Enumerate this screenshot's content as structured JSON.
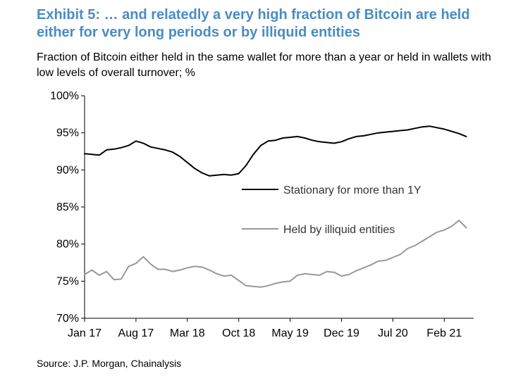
{
  "title": "Exhibit 5: … and relatedly a very high fraction of Bitcoin are held either for very long periods or by illiquid entities",
  "subtitle": "Fraction of Bitcoin either held in the same wallet for more than a year or held in wallets with low levels of overall turnover; %",
  "source": "Source: J.P. Morgan, Chainalysis",
  "chart_data": {
    "type": "line",
    "title": "Exhibit 5: … and relatedly a very high fraction of Bitcoin are held either for very long periods or by illiquid entities",
    "subtitle": "Fraction of Bitcoin either held in the same wallet for more than a year or held in wallets with low levels of overall turnover; %",
    "xlabel": "",
    "ylabel": "",
    "x_ticks": [
      "Jan 17",
      "Aug 17",
      "Mar 18",
      "Oct 18",
      "May 19",
      "Dec 19",
      "Jul 20",
      "Feb 21"
    ],
    "y_ticks": [
      "100%",
      "95%",
      "90%",
      "85%",
      "80%",
      "75%",
      "70%"
    ],
    "ylim": [
      70,
      100
    ],
    "xlim": [
      "2017-01",
      "2021-06"
    ],
    "grid": false,
    "legend_position": "center-right",
    "series": [
      {
        "name": "Stationary for more than 1Y",
        "color": "#000000",
        "x": [
          "2017-01",
          "2017-02",
          "2017-03",
          "2017-04",
          "2017-05",
          "2017-06",
          "2017-07",
          "2017-08",
          "2017-09",
          "2017-10",
          "2017-11",
          "2017-12",
          "2018-01",
          "2018-02",
          "2018-03",
          "2018-04",
          "2018-05",
          "2018-06",
          "2018-07",
          "2018-08",
          "2018-09",
          "2018-10",
          "2018-11",
          "2018-12",
          "2019-01",
          "2019-02",
          "2019-03",
          "2019-04",
          "2019-05",
          "2019-06",
          "2019-07",
          "2019-08",
          "2019-09",
          "2019-10",
          "2019-11",
          "2019-12",
          "2020-01",
          "2020-02",
          "2020-03",
          "2020-04",
          "2020-05",
          "2020-06",
          "2020-07",
          "2020-08",
          "2020-09",
          "2020-10",
          "2020-11",
          "2020-12",
          "2021-01",
          "2021-02",
          "2021-03",
          "2021-04",
          "2021-05"
        ],
        "values": [
          92.2,
          92.1,
          92.0,
          92.7,
          92.8,
          93.0,
          93.3,
          93.9,
          93.6,
          93.1,
          92.9,
          92.7,
          92.4,
          91.8,
          91.0,
          90.2,
          89.6,
          89.2,
          89.3,
          89.4,
          89.3,
          89.5,
          90.6,
          92.1,
          93.3,
          93.9,
          94.0,
          94.3,
          94.4,
          94.5,
          94.3,
          94.0,
          93.8,
          93.7,
          93.6,
          93.8,
          94.2,
          94.5,
          94.6,
          94.8,
          95.0,
          95.1,
          95.2,
          95.3,
          95.4,
          95.6,
          95.8,
          95.9,
          95.7,
          95.5,
          95.2,
          94.9,
          94.5
        ]
      },
      {
        "name": "Held by illiquid entities",
        "color": "#999999",
        "x": [
          "2017-01",
          "2017-02",
          "2017-03",
          "2017-04",
          "2017-05",
          "2017-06",
          "2017-07",
          "2017-08",
          "2017-09",
          "2017-10",
          "2017-11",
          "2017-12",
          "2018-01",
          "2018-02",
          "2018-03",
          "2018-04",
          "2018-05",
          "2018-06",
          "2018-07",
          "2018-08",
          "2018-09",
          "2018-10",
          "2018-11",
          "2018-12",
          "2019-01",
          "2019-02",
          "2019-03",
          "2019-04",
          "2019-05",
          "2019-06",
          "2019-07",
          "2019-08",
          "2019-09",
          "2019-10",
          "2019-11",
          "2019-12",
          "2020-01",
          "2020-02",
          "2020-03",
          "2020-04",
          "2020-05",
          "2020-06",
          "2020-07",
          "2020-08",
          "2020-09",
          "2020-10",
          "2020-11",
          "2020-12",
          "2021-01",
          "2021-02",
          "2021-03",
          "2021-04",
          "2021-05"
        ],
        "values": [
          75.9,
          76.5,
          75.8,
          76.3,
          75.2,
          75.3,
          77.0,
          77.4,
          78.3,
          77.3,
          76.6,
          76.6,
          76.3,
          76.5,
          76.8,
          77.0,
          76.9,
          76.5,
          76.0,
          75.7,
          75.8,
          75.1,
          74.4,
          74.3,
          74.2,
          74.4,
          74.7,
          74.9,
          75.0,
          75.8,
          76.0,
          75.9,
          75.8,
          76.3,
          76.2,
          75.7,
          75.9,
          76.4,
          76.8,
          77.2,
          77.7,
          77.8,
          78.2,
          78.6,
          79.4,
          79.8,
          80.4,
          81.0,
          81.6,
          81.9,
          82.4,
          83.2,
          82.2
        ]
      }
    ]
  }
}
